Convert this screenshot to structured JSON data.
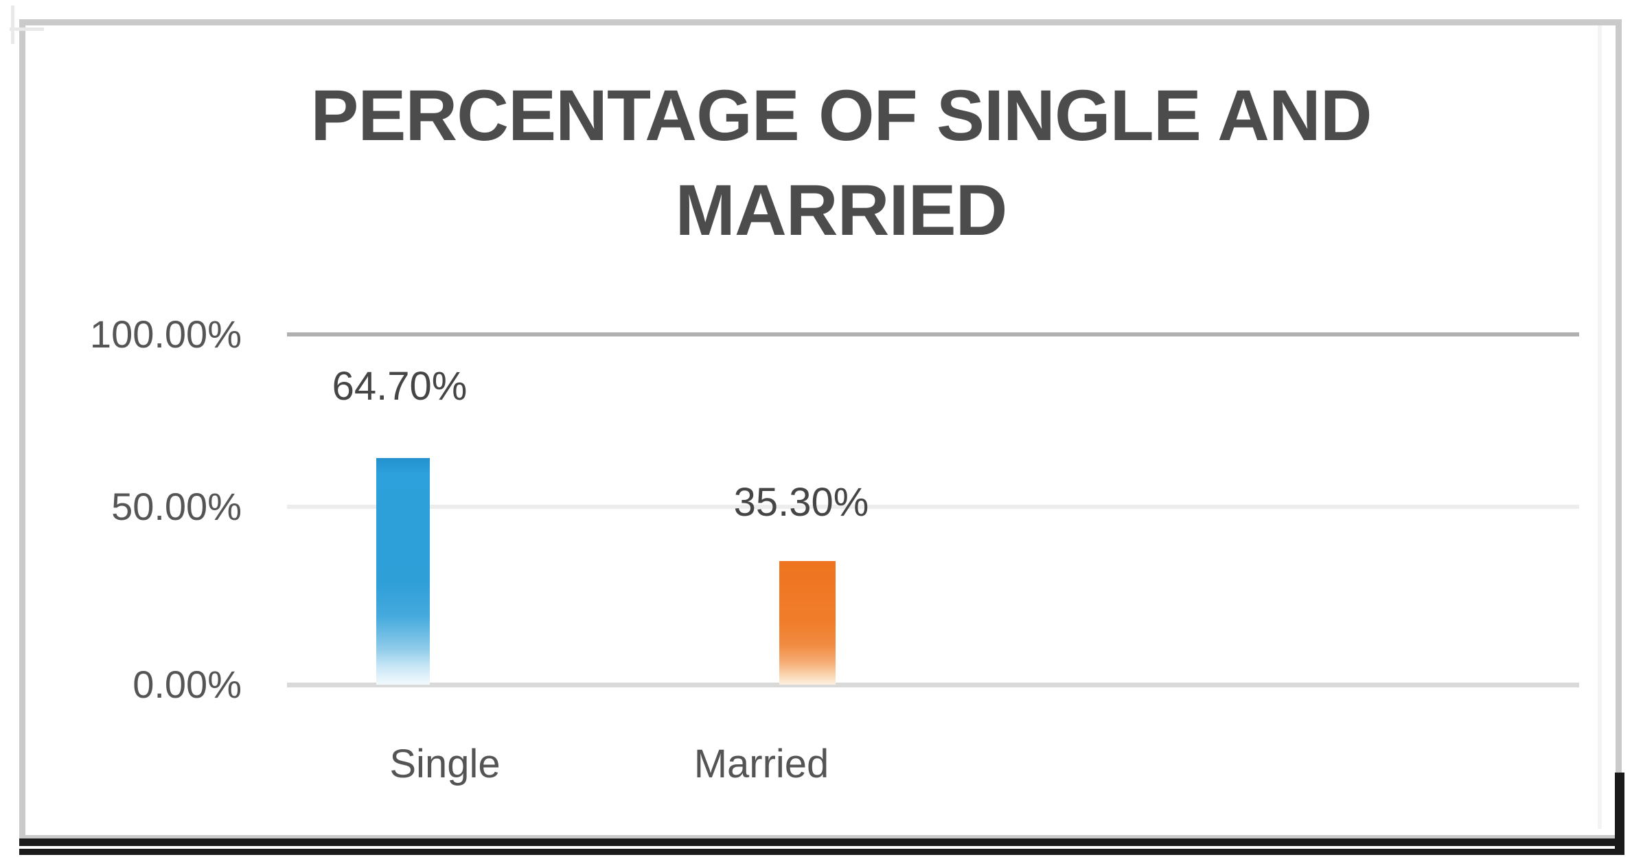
{
  "chart_data": {
    "type": "bar",
    "title": "PERCENTAGE OF SINGLE AND MARRIED",
    "title_lines": [
      "PERCENTAGE OF SINGLE AND",
      "MARRIED"
    ],
    "categories": [
      "Single",
      "Married"
    ],
    "values": [
      64.7,
      35.3
    ],
    "data_labels": [
      "64.70%",
      "35.30%"
    ],
    "y_axis": {
      "ticks": [
        "100.00%",
        "50.00%",
        "0.00%"
      ],
      "min": 0,
      "max": 100,
      "format": "percent"
    },
    "grid": true,
    "legend": "none",
    "layout_hints": {
      "bar_fill_style": "solid color fading to white at bar base",
      "gridline_color_top": "#b0b0b0",
      "gridline_color_mid": "#ededed",
      "gridline_color_base": "#d9d9d9"
    },
    "colors": {
      "single_bar": "#2F9FD8",
      "married_bar": "#F07D2B",
      "title_text": "#4C4C4C",
      "axis_text": "#555555",
      "chart_border": "#CACACA",
      "bottom_border": "#1A1A1A"
    }
  }
}
